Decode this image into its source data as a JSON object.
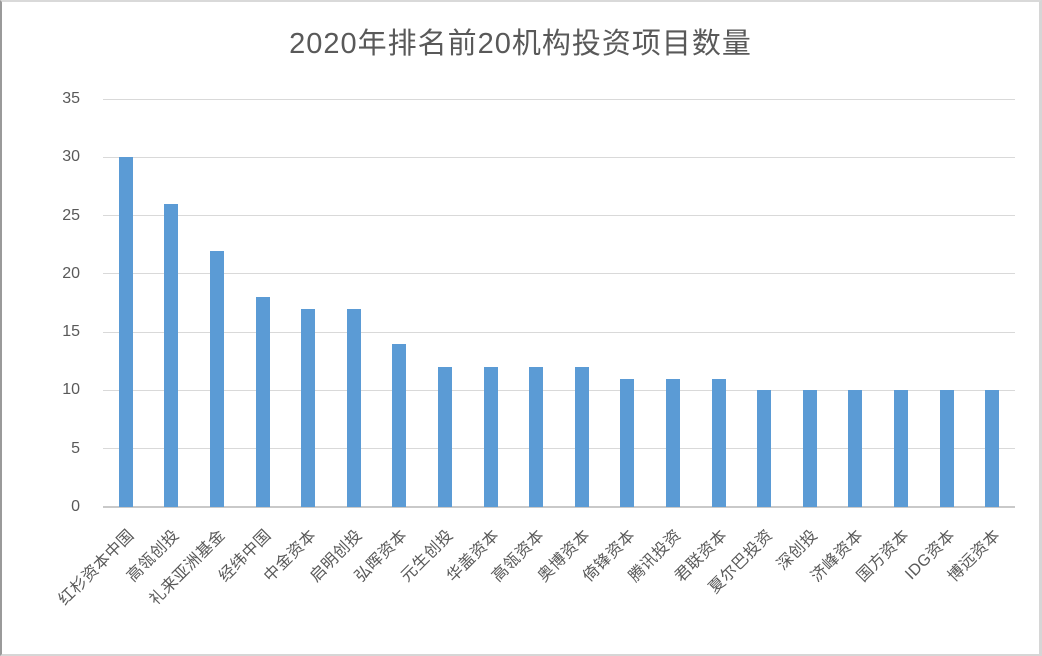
{
  "chart_data": {
    "type": "bar",
    "title": "2020年排名前20机构投资项目数量",
    "categories": [
      "红杉资本中国",
      "高瓴创投",
      "礼来亚洲基金",
      "经纬中国",
      "中金资本",
      "启明创投",
      "弘晖资本",
      "元生创投",
      "华盖资本",
      "高瓴资本",
      "奥博资本",
      "倚锋资本",
      "腾讯投资",
      "君联资本",
      "夏尔巴投资",
      "深创投",
      "济峰资本",
      "国方资本",
      "IDG资本",
      "博远资本"
    ],
    "values": [
      30,
      26,
      22,
      18,
      17,
      17,
      14,
      12,
      12,
      12,
      12,
      11,
      11,
      11,
      10,
      10,
      10,
      10,
      10,
      10
    ],
    "xlabel": "",
    "ylabel": "",
    "ylim": [
      0,
      35
    ],
    "ytick_step": 5,
    "yticks": [
      0,
      5,
      10,
      15,
      20,
      25,
      30,
      35
    ],
    "grid": true,
    "legend_position": "none",
    "bar_color": "#5b9bd5",
    "text_color": "#595959",
    "gridline_color": "#d9d9d9",
    "axis_line_color": "#c9c9c9"
  }
}
